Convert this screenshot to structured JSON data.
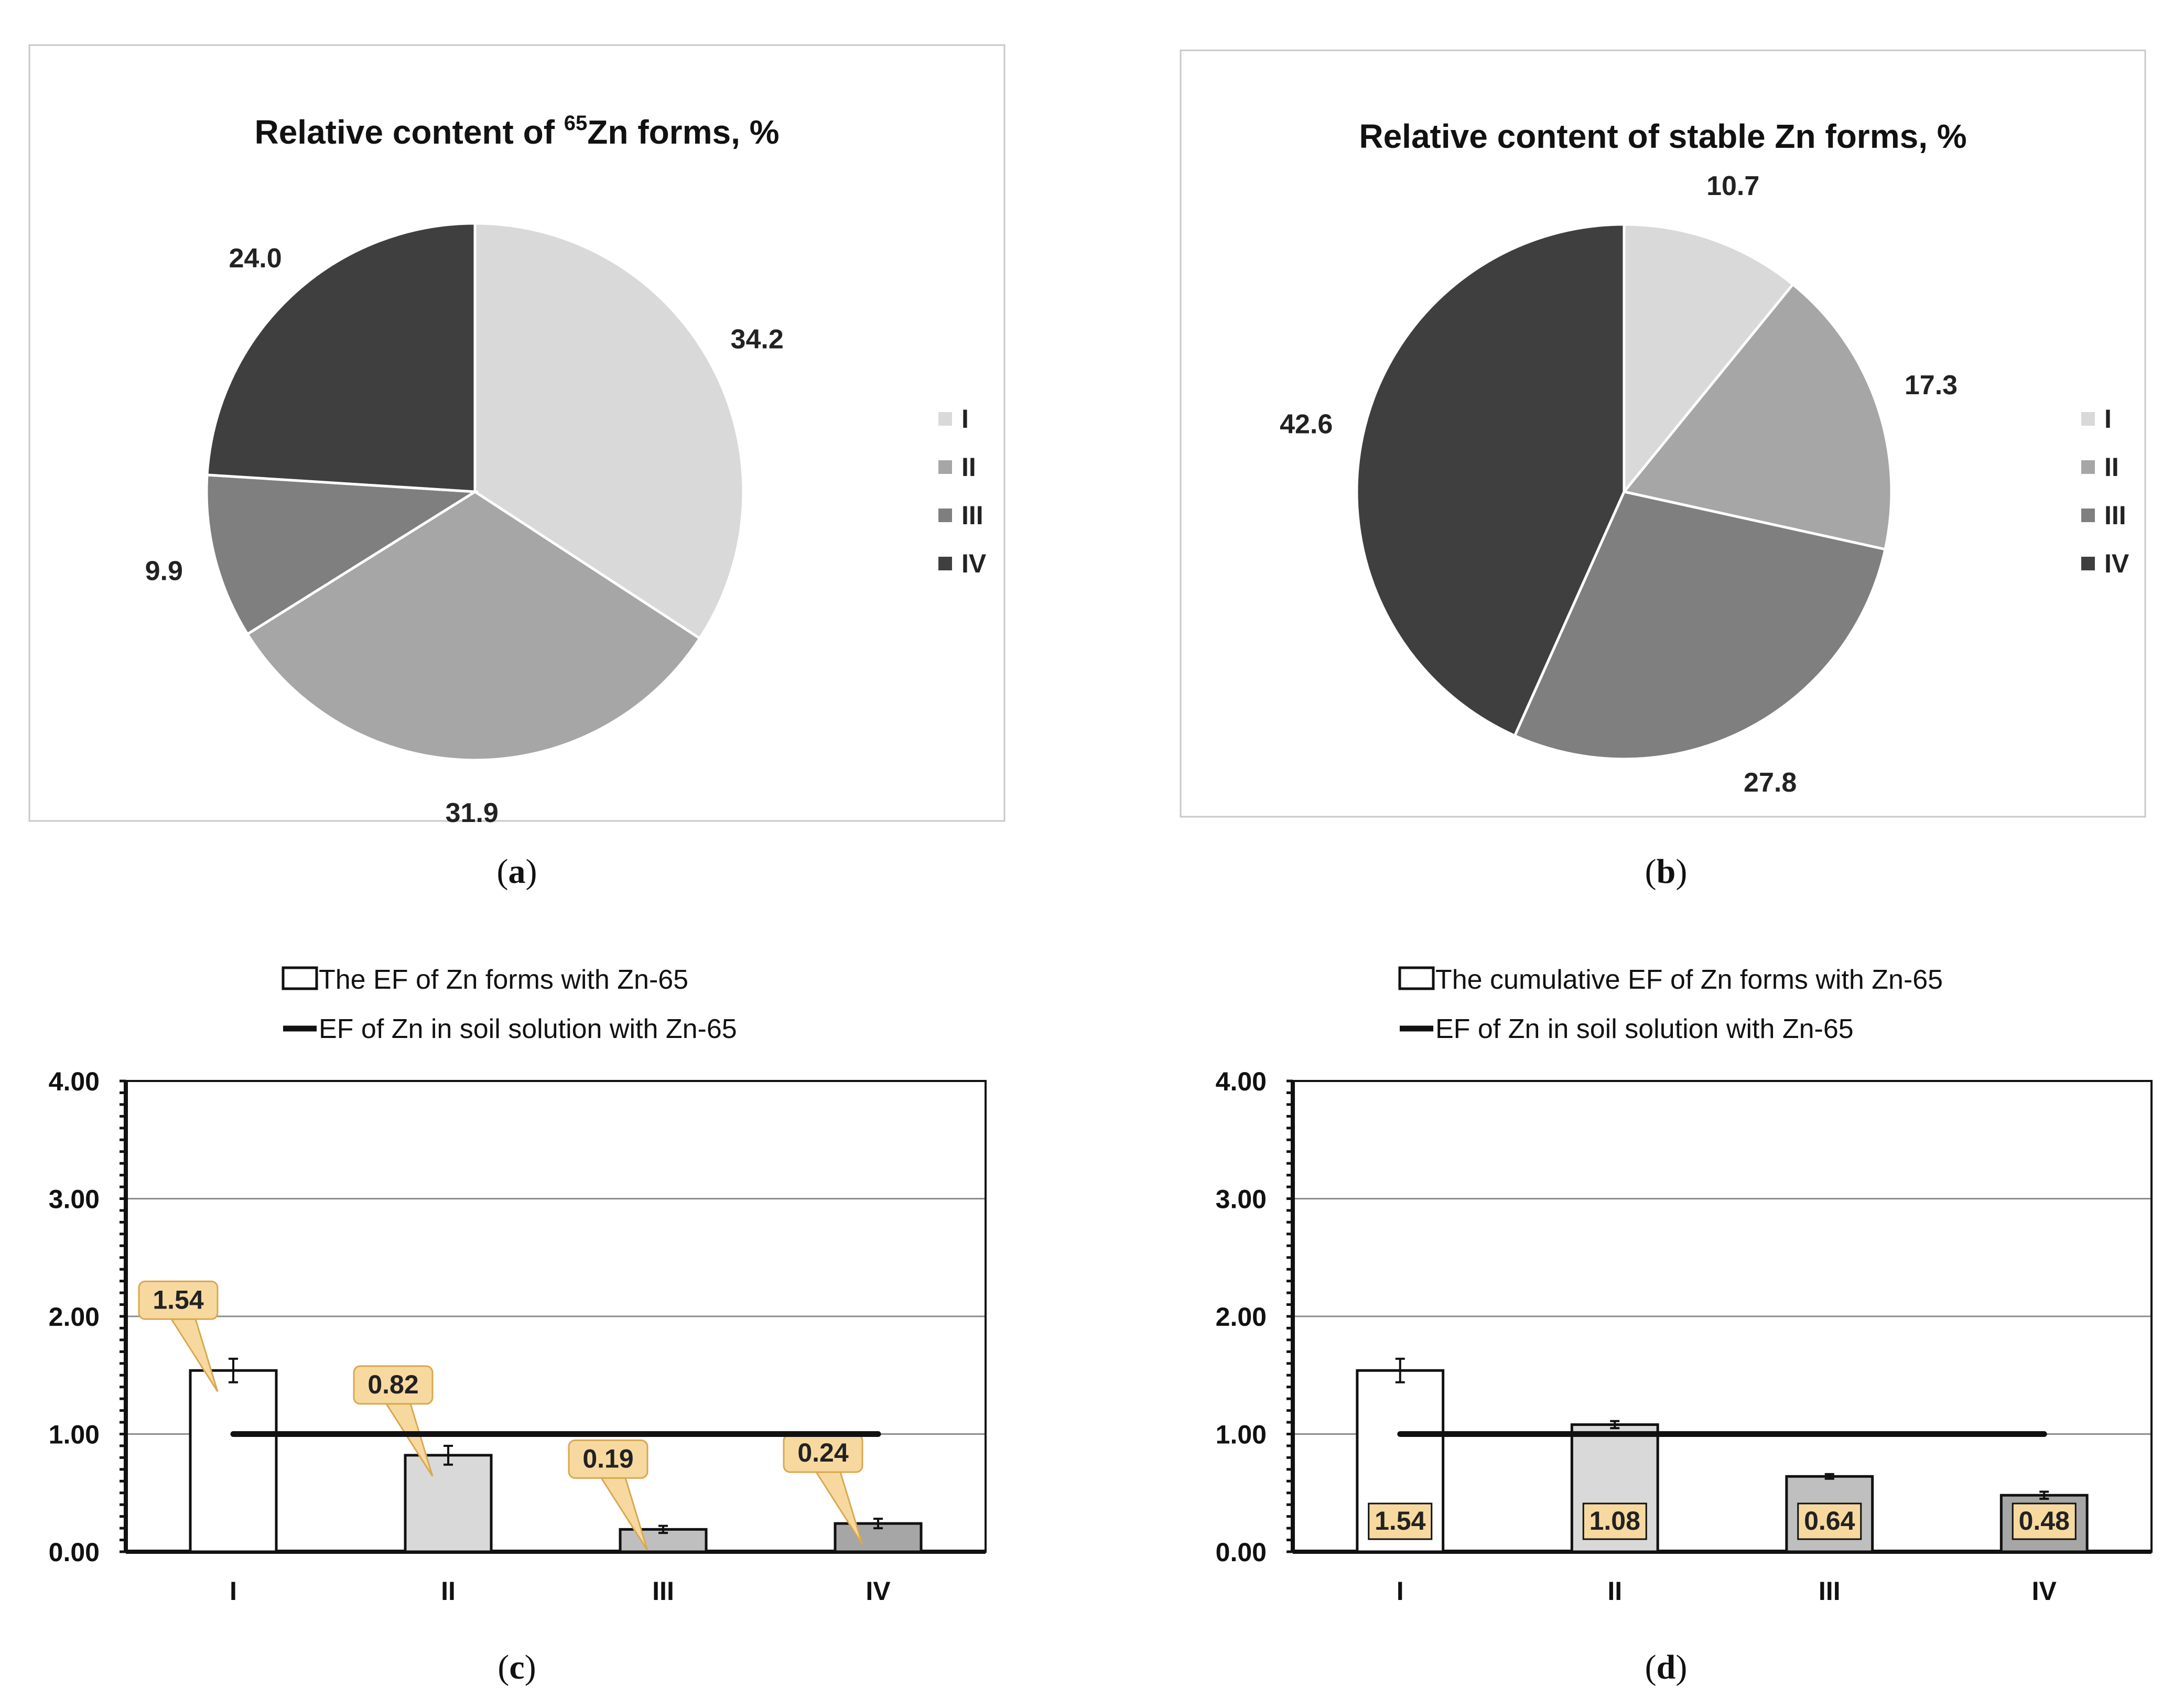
{
  "colors": {
    "I": "#d9d9d9",
    "II": "#a6a6a6",
    "III": "#7f7f7f",
    "IV": "#3f3f3f",
    "bar_I": "#ffffff",
    "bar_II": "#d9d9d9",
    "bar_III": "#bfbfbf",
    "bar_IV": "#a6a6a6",
    "callout": "#f7d9a0",
    "callout_border": "#d9a84e"
  },
  "captions": {
    "a": "a",
    "b": "b",
    "c": "c",
    "d": "d"
  },
  "chart_data": [
    {
      "id": "a",
      "type": "pie",
      "title_prefix": "Relative content of ",
      "title_sup": "65",
      "title_suffix": "Zn forms, %",
      "categories": [
        "I",
        "II",
        "III",
        "IV"
      ],
      "values": [
        34.2,
        31.9,
        9.9,
        24.0
      ],
      "value_labels": [
        "34.2",
        "31.9",
        "9.9",
        "24.0"
      ],
      "legend": [
        "I",
        "II",
        "III",
        "IV"
      ],
      "legend_position": "right"
    },
    {
      "id": "b",
      "type": "pie",
      "title": "Relative content of stable Zn forms, %",
      "categories": [
        "I",
        "II",
        "III",
        "IV"
      ],
      "values": [
        10.7,
        17.3,
        27.8,
        42.6
      ],
      "value_labels": [
        "10.7",
        "17.3",
        "27.8",
        "42.6"
      ],
      "legend": [
        "I",
        "II",
        "III",
        "IV"
      ],
      "legend_position": "right"
    },
    {
      "id": "c",
      "type": "bar",
      "categories": [
        "I",
        "II",
        "III",
        "IV"
      ],
      "series": [
        {
          "name": "The EF of Zn forms with Zn-65",
          "values": [
            1.54,
            0.82,
            0.19,
            0.24
          ],
          "errors": [
            0.1,
            0.08,
            0.03,
            0.04
          ]
        },
        {
          "name": "EF of Zn in soil solution with Zn-65",
          "type": "line",
          "values": [
            1.0,
            1.0,
            1.0,
            1.0
          ]
        }
      ],
      "data_labels": [
        "1.54",
        "0.82",
        "0.19",
        "0.24"
      ],
      "yticks": [
        "0.00",
        "1.00",
        "2.00",
        "3.00",
        "4.00"
      ],
      "ylim": [
        0,
        4
      ],
      "grid": true
    },
    {
      "id": "d",
      "type": "bar",
      "categories": [
        "I",
        "II",
        "III",
        "IV"
      ],
      "series": [
        {
          "name": "The cumulative EF of Zn forms with Zn-65",
          "values": [
            1.54,
            1.08,
            0.64,
            0.48
          ],
          "errors": [
            0.1,
            0.03,
            0.02,
            0.03
          ]
        },
        {
          "name": "EF of Zn in soil solution with Zn-65",
          "type": "line",
          "values": [
            1.0,
            1.0,
            1.0,
            1.0
          ]
        }
      ],
      "data_labels": [
        "1.54",
        "1.08",
        "0.64",
        "0.48"
      ],
      "yticks": [
        "0.00",
        "1.00",
        "2.00",
        "3.00",
        "4.00"
      ],
      "ylim": [
        0,
        4
      ],
      "grid": true
    }
  ]
}
